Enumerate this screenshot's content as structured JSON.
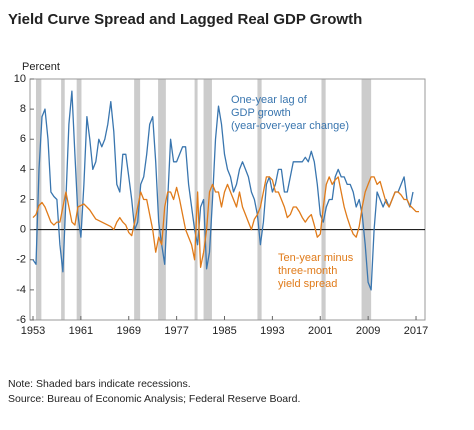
{
  "chart_data": {
    "type": "line",
    "title": "Yield Curve Spread and Lagged Real GDP Growth",
    "y_axis_label": "Percent",
    "note": "Note: Shaded bars indicate recessions.",
    "source": "Source: Bureau of Economic Analysis; Federal Reserve Board.",
    "xlim": [
      1952.5,
      2018.5
    ],
    "xticks": [
      1953,
      1961,
      1969,
      1977,
      1985,
      1993,
      2001,
      2009,
      2017
    ],
    "ylim": [
      -6,
      10
    ],
    "yticks": [
      -6,
      -4,
      -2,
      0,
      2,
      4,
      6,
      8,
      10
    ],
    "recession_color": "#cccccc",
    "recessions": [
      [
        1953.5,
        1954.4
      ],
      [
        1957.7,
        1958.3
      ],
      [
        1960.3,
        1961.1
      ],
      [
        1969.9,
        1970.9
      ],
      [
        1973.9,
        1975.2
      ],
      [
        1980.0,
        1980.5
      ],
      [
        1981.5,
        1982.9
      ],
      [
        1990.5,
        1991.2
      ],
      [
        2001.2,
        2001.9
      ],
      [
        2007.9,
        2009.5
      ]
    ],
    "annotations": [
      {
        "lines": [
          "One-year lag of",
          "GDP growth",
          "(year-over-year change)"
        ],
        "color": "#3a76af"
      },
      {
        "lines": [
          "Ten-year minus",
          "three-month",
          "yield spread"
        ],
        "color": "#e07b1a"
      }
    ],
    "x": [
      1953,
      1953.5,
      1954,
      1954.5,
      1955,
      1955.5,
      1956,
      1956.5,
      1957,
      1957.5,
      1958,
      1958.5,
      1959,
      1959.5,
      1960,
      1960.5,
      1961,
      1961.5,
      1962,
      1962.5,
      1963,
      1963.5,
      1964,
      1964.5,
      1965,
      1965.5,
      1966,
      1966.5,
      1967,
      1967.5,
      1968,
      1968.5,
      1969,
      1969.5,
      1970,
      1970.5,
      1971,
      1971.5,
      1972,
      1972.5,
      1973,
      1973.5,
      1974,
      1974.5,
      1975,
      1975.5,
      1976,
      1976.5,
      1977,
      1977.5,
      1978,
      1978.5,
      1979,
      1979.5,
      1980,
      1980.5,
      1981,
      1981.5,
      1982,
      1982.5,
      1983,
      1983.5,
      1984,
      1984.5,
      1985,
      1985.5,
      1986,
      1986.5,
      1987,
      1987.5,
      1988,
      1988.5,
      1989,
      1989.5,
      1990,
      1990.5,
      1991,
      1991.5,
      1992,
      1992.5,
      1993,
      1993.5,
      1994,
      1994.5,
      1995,
      1995.5,
      1996,
      1996.5,
      1997,
      1997.5,
      1998,
      1998.5,
      1999,
      1999.5,
      2000,
      2000.5,
      2001,
      2001.5,
      2002,
      2002.5,
      2003,
      2003.5,
      2004,
      2004.5,
      2005,
      2005.5,
      2006,
      2006.5,
      2007,
      2007.5,
      2008,
      2008.5,
      2009,
      2009.5,
      2010,
      2010.5,
      2011,
      2011.5,
      2012,
      2012.5,
      2013,
      2013.5,
      2014,
      2014.5,
      2015,
      2015.5,
      2016,
      2016.5,
      2017,
      2017.5
    ],
    "series": [
      {
        "name": "One-year lag of GDP growth",
        "color": "#3a76af",
        "values": [
          -2,
          -2.3,
          4,
          7.5,
          8,
          6,
          2.5,
          2.2,
          2,
          -1,
          -2.8,
          2,
          7,
          9.2,
          5,
          1,
          -0.5,
          3,
          7.5,
          6,
          4,
          4.5,
          6,
          5.5,
          6,
          7,
          8.5,
          6.5,
          3,
          2.5,
          5,
          5,
          3.5,
          2,
          0,
          0.5,
          3,
          3.5,
          5,
          7,
          7.5,
          4.5,
          0.5,
          -1,
          -2.3,
          2,
          6,
          4.5,
          4.5,
          5,
          5.5,
          5.5,
          3,
          1.5,
          0,
          -1,
          1.5,
          2,
          -2.6,
          -1.5,
          2,
          6,
          8.2,
          7,
          5,
          4,
          3.5,
          2.5,
          3,
          4,
          4.5,
          4,
          3.5,
          2.5,
          2,
          1,
          -1,
          0.5,
          3,
          3.5,
          2.5,
          3,
          4,
          4,
          2.5,
          2.5,
          3.5,
          4.5,
          4.5,
          4.5,
          4.5,
          4.8,
          4.5,
          5.2,
          4.5,
          3,
          1,
          0.5,
          1.5,
          2,
          2,
          3.5,
          4,
          3.5,
          3.5,
          3,
          3,
          2.5,
          1.5,
          2,
          1,
          -1,
          -3.5,
          -4,
          0,
          2.5,
          2,
          1.5,
          2,
          1.5,
          2,
          2.5,
          2.5,
          3,
          3.5,
          2,
          1.5,
          2.5,
          null,
          null
        ]
      },
      {
        "name": "Ten-year minus three-month yield spread",
        "color": "#e07b1a",
        "values": [
          0.8,
          1,
          1.6,
          1.8,
          1.5,
          1,
          0.5,
          0.3,
          0.5,
          0.5,
          1.5,
          2.5,
          1.5,
          0.5,
          0.3,
          1.5,
          1.6,
          1.7,
          1.5,
          1.3,
          1,
          0.7,
          0.6,
          0.5,
          0.4,
          0.3,
          0.2,
          0,
          0.5,
          0.8,
          0.5,
          0.3,
          -0.2,
          -0.4,
          0.5,
          1.5,
          2.5,
          2,
          2,
          1,
          0,
          -1.5,
          -0.5,
          -1,
          1.5,
          2.5,
          2.5,
          2,
          2.8,
          2,
          1,
          0,
          -0.5,
          -1,
          -2,
          2.5,
          -2.5,
          -1.5,
          0,
          2.5,
          3,
          2.5,
          2.5,
          1.5,
          2.5,
          3,
          2.5,
          2,
          1.5,
          2.5,
          1.5,
          1,
          0.5,
          0,
          0.7,
          1,
          1.5,
          2.5,
          3.5,
          3.5,
          3.3,
          2.5,
          2.5,
          2,
          1.5,
          0.8,
          1,
          1.5,
          1.5,
          1.2,
          0.8,
          0.5,
          0.8,
          1,
          0.3,
          -0.5,
          -0.3,
          1.5,
          3,
          3.5,
          3,
          3.3,
          3.5,
          2.5,
          1.5,
          0.8,
          0.2,
          -0.3,
          -0.5,
          0.2,
          1.5,
          2.5,
          3,
          3.5,
          3.5,
          3,
          3.2,
          2.5,
          1.8,
          1.5,
          2,
          2.5,
          2.5,
          2.3,
          2,
          2,
          1.6,
          1.4,
          1.2,
          1.2
        ]
      }
    ]
  }
}
